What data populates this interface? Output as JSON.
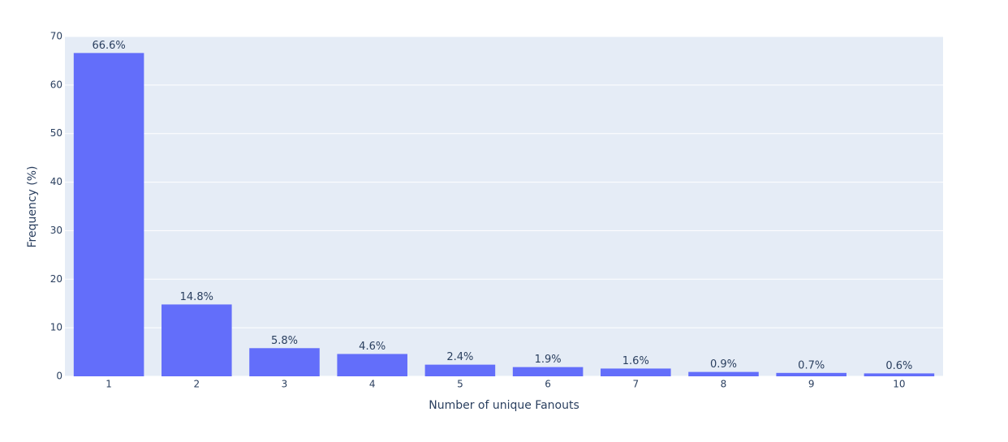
{
  "chart_data": {
    "type": "bar",
    "x_label": "Number of unique Fanouts",
    "y_label": "Frequency (%)",
    "categories": [
      "1",
      "2",
      "3",
      "4",
      "5",
      "6",
      "7",
      "8",
      "9",
      "10"
    ],
    "values": [
      66.6,
      14.8,
      5.8,
      4.6,
      2.4,
      1.9,
      1.6,
      0.9,
      0.7,
      0.6
    ],
    "value_labels": [
      "66.6%",
      "14.8%",
      "5.8%",
      "4.6%",
      "2.4%",
      "1.9%",
      "1.6%",
      "0.9%",
      "0.7%",
      "0.6%"
    ],
    "color": "#636efa",
    "ylim": [
      0,
      70
    ],
    "yticks": [
      0,
      10,
      20,
      30,
      40,
      50,
      60,
      70
    ],
    "grid": true
  }
}
